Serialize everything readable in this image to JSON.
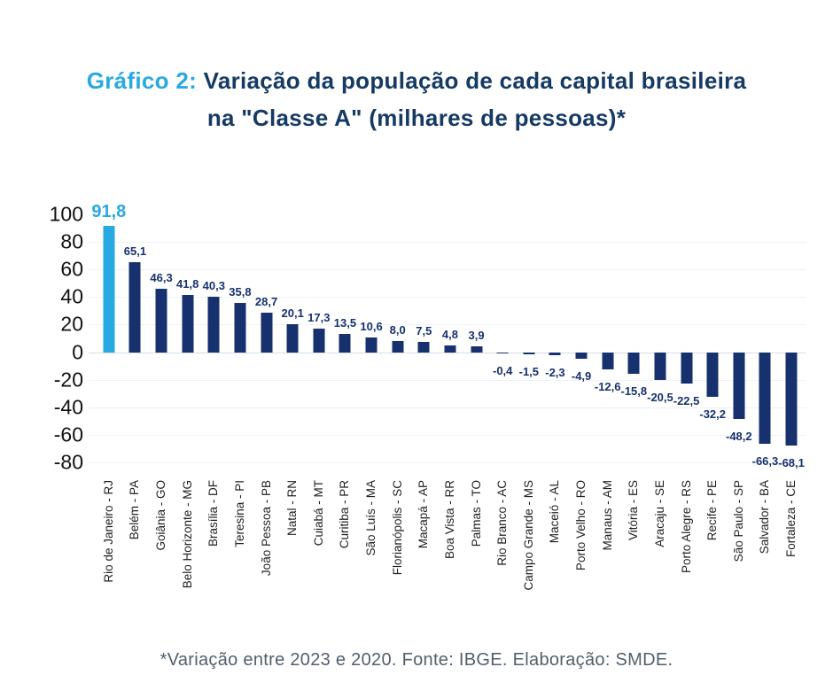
{
  "title": {
    "prefix": "Gráfico 2:",
    "line1": "Variação da população de cada capital brasileira",
    "line2": "na \"Classe A\" (milhares de pessoas)*"
  },
  "footer": {
    "note": "*Variação entre 2023 e 2020. Fonte: IBGE. Elaboração: SMDE."
  },
  "colors": {
    "accent_cyan": "#29A9E1",
    "bar_navy": "#16316E",
    "title_navy": "#153A64"
  },
  "chart_data": {
    "type": "bar",
    "title": "Gráfico 2: Variação da população de cada capital brasileira na \"Classe A\" (milhares de pessoas)*",
    "xlabel": "",
    "ylabel": "",
    "ylim": [
      -80,
      100
    ],
    "yticks": [
      100,
      80,
      60,
      40,
      20,
      0,
      -20,
      -40,
      -60,
      -80
    ],
    "grid": true,
    "legend": "none",
    "highlight_index": 0,
    "categories": [
      "Rio de Janeiro - RJ",
      "Belém - PA",
      "Goiânia - GO",
      "Belo Horizonte - MG",
      "Brasília - DF",
      "Teresina - PI",
      "João Pessoa - PB",
      "Natal - RN",
      "Cuiabá - MT",
      "Curitiba - PR",
      "São Luís - MA",
      "Florianópolis - SC",
      "Macapá - AP",
      "Boa Vista - RR",
      "Palmas - TO",
      "Rio Branco - AC",
      "Campo Grande - MS",
      "Maceió - AL",
      "Porto Velho - RO",
      "Manaus - AM",
      "Vitória - ES",
      "Aracaju - SE",
      "Porto Alegre - RS",
      "Recife - PE",
      "São Paulo - SP",
      "Salvador - BA",
      "Fortaleza - CE"
    ],
    "values": [
      91.8,
      65.1,
      46.3,
      41.8,
      40.3,
      35.8,
      28.7,
      20.1,
      17.3,
      13.5,
      10.6,
      8.0,
      7.5,
      4.8,
      3.9,
      -0.4,
      -1.5,
      -2.3,
      -4.9,
      -12.6,
      -15.8,
      -20.5,
      -22.5,
      -32.2,
      -48.2,
      -66.3,
      -68.1
    ],
    "value_labels": [
      "91,8",
      "65,1",
      "46,3",
      "41,8",
      "40,3",
      "35,8",
      "28,7",
      "20,1",
      "17,3",
      "13,5",
      "10,6",
      "8,0",
      "7,5",
      "4,8",
      "3,9",
      "-0,4",
      "-1,5",
      "-2,3",
      "-4,9",
      "-12,6",
      "-15,8",
      "-20,5",
      "-22,5",
      "-32,2",
      "-48,2",
      "-66,3",
      "-68,1"
    ]
  }
}
